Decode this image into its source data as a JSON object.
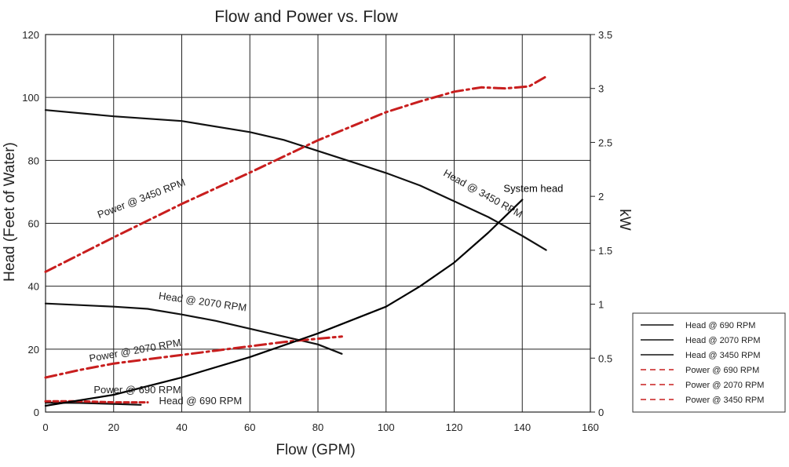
{
  "chart_data": {
    "type": "line",
    "title": "Flow and Power vs. Flow",
    "xlabel": "Flow (GPM)",
    "ylabel_left": "Head (Feet of Water)",
    "ylabel_right": "kW",
    "xlim": [
      0,
      160
    ],
    "ylim_left": [
      0,
      120
    ],
    "ylim_right": [
      0,
      3.5
    ],
    "x_ticks": [
      "0",
      "20",
      "40",
      "60",
      "80",
      "100",
      "120",
      "140",
      "160"
    ],
    "y_left_ticks": [
      "0",
      "20",
      "40",
      "60",
      "80",
      "100",
      "120"
    ],
    "y_right_ticks": [
      "0",
      "0.5",
      "1",
      "1.5",
      "2",
      "2.5",
      "3",
      "3.5"
    ],
    "grid": true,
    "legend_position": "right",
    "colors": {
      "head": "#111111",
      "power": "#c81e1e",
      "system": "#000000"
    },
    "series": [
      {
        "name": "Head @ 690 RPM",
        "axis": "left",
        "style": "solid",
        "color": "#111111",
        "x": [
          0,
          10,
          20,
          28
        ],
        "y": [
          3,
          2.9,
          2.6,
          2.3
        ]
      },
      {
        "name": "Head @ 2070 RPM",
        "axis": "left",
        "style": "solid",
        "color": "#111111",
        "x": [
          0,
          10,
          20,
          30,
          40,
          50,
          60,
          70,
          80,
          87
        ],
        "y": [
          34.5,
          34,
          33.5,
          32.8,
          31,
          29,
          26.5,
          24,
          21.5,
          18.5
        ]
      },
      {
        "name": "Head @ 3450 RPM",
        "axis": "left",
        "style": "solid",
        "color": "#111111",
        "x": [
          0,
          20,
          40,
          60,
          70,
          80,
          90,
          100,
          110,
          120,
          130,
          140,
          147
        ],
        "y": [
          96,
          94,
          92.5,
          89,
          86.5,
          83,
          79.5,
          76,
          72,
          67,
          62,
          56,
          51.5
        ]
      },
      {
        "name": "Power @ 690 RPM",
        "axis": "right",
        "style": "dashed",
        "color": "#c81e1e",
        "x": [
          0,
          10,
          20,
          30
        ],
        "y": [
          0.1,
          0.1,
          0.09,
          0.09
        ]
      },
      {
        "name": "Power @ 2070 RPM",
        "axis": "right",
        "style": "dashdot",
        "color": "#c81e1e",
        "x": [
          0,
          10,
          20,
          30,
          40,
          50,
          60,
          70,
          80,
          87
        ],
        "y": [
          0.32,
          0.39,
          0.45,
          0.49,
          0.53,
          0.57,
          0.61,
          0.65,
          0.68,
          0.7
        ]
      },
      {
        "name": "Power @ 3450 RPM",
        "axis": "right",
        "style": "dashdot",
        "color": "#c81e1e",
        "x": [
          0,
          20,
          40,
          60,
          80,
          100,
          110,
          120,
          128,
          135,
          142,
          147
        ],
        "y": [
          1.3,
          1.62,
          1.93,
          2.22,
          2.52,
          2.78,
          2.88,
          2.97,
          3.01,
          3.0,
          3.02,
          3.11
        ]
      },
      {
        "name": "System head",
        "axis": "left",
        "style": "solid",
        "color": "#000000",
        "x": [
          0,
          20,
          40,
          60,
          80,
          100,
          110,
          120,
          130,
          140
        ],
        "y": [
          2,
          5.5,
          11,
          17.5,
          25,
          33.5,
          40,
          47.5,
          57,
          67.5
        ]
      }
    ],
    "curve_labels": [
      {
        "text": "Power @ 3450 RPM",
        "x": 28.5,
        "y_right": 1.95,
        "angle": -21
      },
      {
        "text": "Head @ 3450 RPM",
        "x": 128,
        "y": 68.5,
        "angle": 29
      },
      {
        "text": "Head @ 2070 RPM",
        "x": 46,
        "y": 34,
        "angle": 8
      },
      {
        "text": "Power @ 2070 RPM",
        "x": 26.5,
        "y": 18.5,
        "angle": -10
      },
      {
        "text": "Power @ 690 RPM",
        "x": 27,
        "y": 6,
        "angle": 0
      },
      {
        "text": "Head @ 690 RPM",
        "x": 45.5,
        "y": 2.5,
        "angle": 0
      },
      {
        "text": "System head",
        "x": 152,
        "y": 70,
        "angle": 0
      }
    ],
    "legend": [
      {
        "label": "Head @ 690 RPM",
        "style": "solid",
        "color": "#111111"
      },
      {
        "label": "Head @ 2070 RPM",
        "style": "solid",
        "color": "#111111"
      },
      {
        "label": "Head @ 3450 RPM",
        "style": "solid",
        "color": "#111111"
      },
      {
        "label": "Power @ 690 RPM",
        "style": "dashed",
        "color": "#c81e1e"
      },
      {
        "label": "Power @ 2070 RPM",
        "style": "dashed",
        "color": "#c81e1e"
      },
      {
        "label": "Power @ 3450 RPM",
        "style": "dashed",
        "color": "#c81e1e"
      }
    ]
  }
}
